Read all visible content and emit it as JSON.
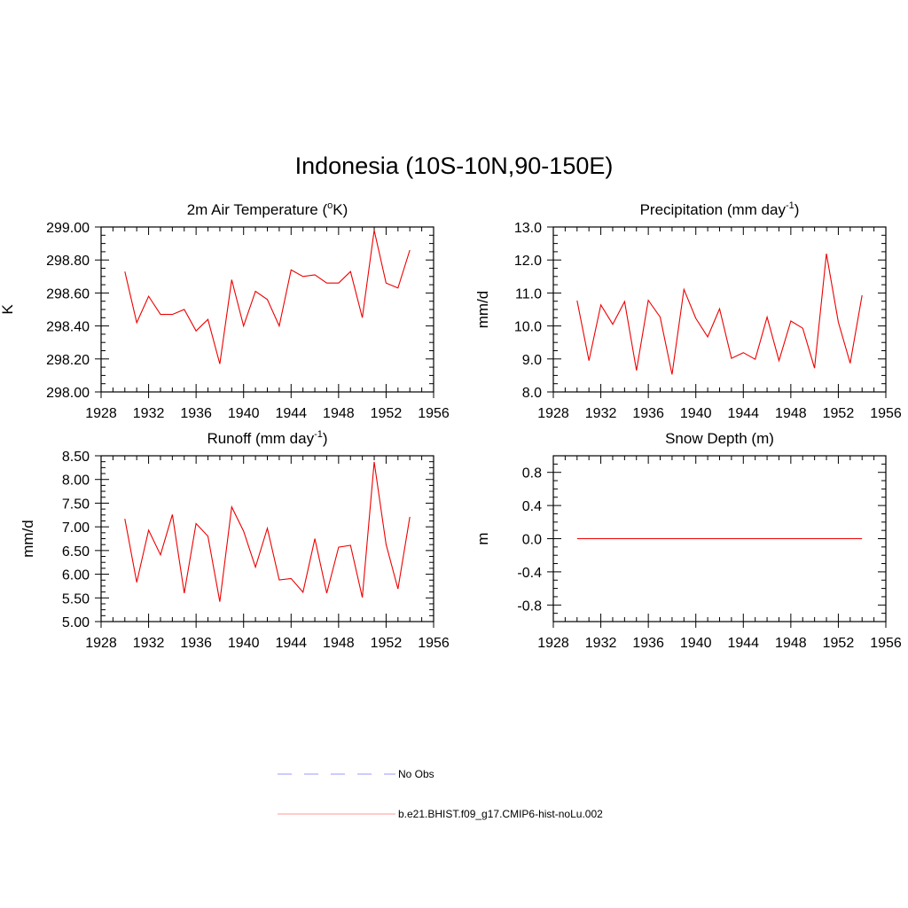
{
  "title": "Indonesia (10S-10N,90-150E)",
  "legend": [
    {
      "label": "No Obs",
      "color": "#9999ff",
      "dash": true
    },
    {
      "label": "b.e21.BHIST.f09_g17.CMIP6-hist-noLu.002",
      "color": "#ff9999",
      "dash": false
    }
  ],
  "chart_data": [
    {
      "type": "line",
      "title": "2m Air Temperature (oK)",
      "title_parts": {
        "pre": "2m Air Temperature (",
        "sup": "o",
        "post": "K)"
      },
      "xlabel": "",
      "ylabel": "K",
      "xlim": [
        1928,
        1956
      ],
      "ylim": [
        298.0,
        299.0
      ],
      "xticks": [
        "1928",
        "1932",
        "1936",
        "1940",
        "1944",
        "1948",
        "1952",
        "1956"
      ],
      "yticks": [
        "298.00",
        "298.20",
        "298.40",
        "298.60",
        "298.80",
        "299.00"
      ],
      "color": "#ee0000",
      "x": [
        1930,
        1931,
        1932,
        1933,
        1934,
        1935,
        1936,
        1937,
        1938,
        1939,
        1940,
        1941,
        1942,
        1943,
        1944,
        1945,
        1946,
        1947,
        1948,
        1949,
        1950,
        1951,
        1952,
        1953,
        1954
      ],
      "y": [
        298.73,
        298.42,
        298.58,
        298.47,
        298.47,
        298.5,
        298.37,
        298.44,
        298.17,
        298.68,
        298.4,
        298.61,
        298.56,
        298.4,
        298.74,
        298.7,
        298.71,
        298.66,
        298.66,
        298.73,
        298.45,
        298.98,
        298.66,
        298.63,
        298.86
      ]
    },
    {
      "type": "line",
      "title": "Precipitation (mm day-1)",
      "title_parts": {
        "pre": "Precipitation (mm day",
        "sup": "-1",
        "post": ")"
      },
      "xlabel": "",
      "ylabel": "mm/d",
      "xlim": [
        1928,
        1956
      ],
      "ylim": [
        8.0,
        13.0
      ],
      "xticks": [
        "1928",
        "1932",
        "1936",
        "1940",
        "1944",
        "1948",
        "1952",
        "1956"
      ],
      "yticks": [
        "8.0",
        "9.0",
        "10.0",
        "11.0",
        "12.0",
        "13.0"
      ],
      "color": "#ee0000",
      "x": [
        1930,
        1931,
        1932,
        1933,
        1934,
        1935,
        1936,
        1937,
        1938,
        1939,
        1940,
        1941,
        1942,
        1943,
        1944,
        1945,
        1946,
        1947,
        1948,
        1949,
        1950,
        1951,
        1952,
        1953,
        1954
      ],
      "y": [
        10.77,
        8.95,
        10.64,
        10.05,
        10.74,
        8.65,
        10.78,
        10.27,
        8.53,
        11.11,
        10.23,
        9.67,
        10.52,
        9.02,
        9.19,
        8.99,
        10.27,
        8.95,
        10.15,
        9.93,
        8.72,
        12.19,
        10.12,
        8.87,
        10.93
      ]
    },
    {
      "type": "line",
      "title": "Runoff (mm day-1)",
      "title_parts": {
        "pre": "Runoff (mm day",
        "sup": "-1",
        "post": ")"
      },
      "xlabel": "",
      "ylabel": "mm/d",
      "xlim": [
        1928,
        1956
      ],
      "ylim": [
        5.0,
        8.5
      ],
      "xticks": [
        "1928",
        "1932",
        "1936",
        "1940",
        "1944",
        "1948",
        "1952",
        "1956"
      ],
      "yticks": [
        "5.00",
        "5.50",
        "6.00",
        "6.50",
        "7.00",
        "7.50",
        "8.00",
        "8.50"
      ],
      "color": "#ee0000",
      "x": [
        1930,
        1931,
        1932,
        1933,
        1934,
        1935,
        1936,
        1937,
        1938,
        1939,
        1940,
        1941,
        1942,
        1943,
        1944,
        1945,
        1946,
        1947,
        1948,
        1949,
        1950,
        1951,
        1952,
        1953,
        1954
      ],
      "y": [
        7.17,
        5.83,
        6.93,
        6.41,
        7.26,
        5.6,
        7.07,
        6.8,
        5.42,
        7.42,
        6.91,
        6.15,
        6.97,
        5.88,
        5.91,
        5.62,
        6.75,
        5.6,
        6.57,
        6.61,
        5.51,
        8.37,
        6.63,
        5.69,
        7.21
      ]
    },
    {
      "type": "line",
      "title": "Snow Depth (m)",
      "title_parts": {
        "pre": "Snow Depth (m)",
        "sup": "",
        "post": ""
      },
      "xlabel": "",
      "ylabel": "m",
      "xlim": [
        1928,
        1956
      ],
      "ylim": [
        -1.0,
        1.0
      ],
      "xticks": [
        "1928",
        "1932",
        "1936",
        "1940",
        "1944",
        "1948",
        "1952",
        "1956"
      ],
      "yticks": [
        "-0.8",
        "-0.4",
        "0.0",
        "0.4",
        "0.8"
      ],
      "ytick_values": [
        -0.8,
        -0.4,
        0.0,
        0.4,
        0.8
      ],
      "color": "#ee0000",
      "x": [
        1930,
        1954
      ],
      "y": [
        0.0,
        0.0
      ]
    }
  ]
}
